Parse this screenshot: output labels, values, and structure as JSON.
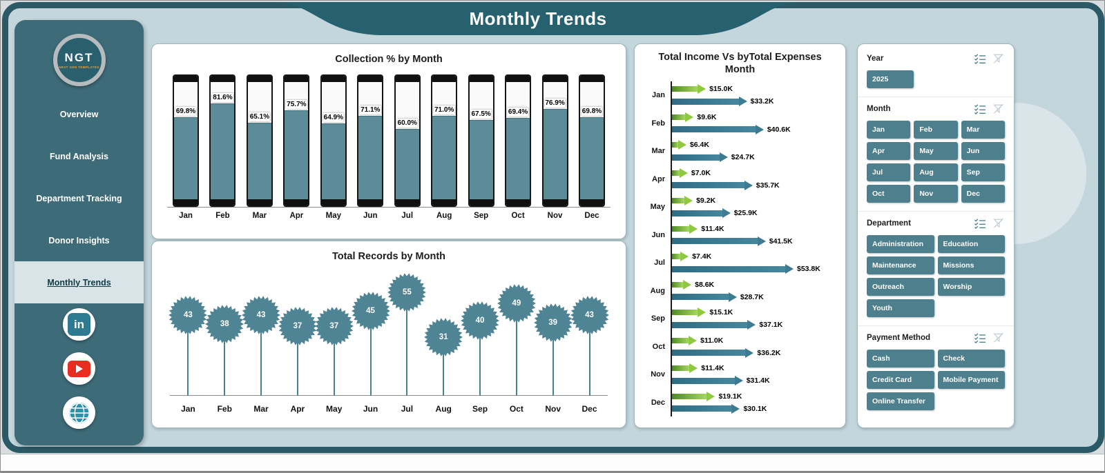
{
  "title": "Monthly Trends",
  "colors": {
    "frame": "#2b5a66",
    "sidebar": "#3e6b78",
    "background": "#c3d6dc",
    "button_teal": "#4d7f8d",
    "bar_fill": "#5d8c99",
    "burst_teal": "#4f8494",
    "income_green": "#7ab33e",
    "expense_teal": "#3c7b91",
    "banner": "#27606e"
  },
  "sidebar": {
    "logo_text": "NGT",
    "logo_subtext": "NEXT GEN TEMPLATES",
    "linkedin_glyph": "in",
    "items": [
      {
        "label": "Overview",
        "active": false
      },
      {
        "label": "Fund Analysis",
        "active": false
      },
      {
        "label": "Department Tracking",
        "active": false
      },
      {
        "label": "Donor Insights",
        "active": false
      },
      {
        "label": "Monthly Trends",
        "active": true
      }
    ],
    "social_icons": [
      "linkedin",
      "youtube",
      "globe"
    ]
  },
  "chart_data": [
    {
      "type": "bar",
      "style": "battery-thermometer",
      "title": "Collection % by Month",
      "categories": [
        "Jan",
        "Feb",
        "Mar",
        "Apr",
        "May",
        "Jun",
        "Jul",
        "Aug",
        "Sep",
        "Oct",
        "Nov",
        "Dec"
      ],
      "values": [
        69.8,
        81.6,
        65.1,
        75.7,
        64.9,
        71.1,
        60.0,
        71.0,
        67.5,
        69.4,
        76.9,
        69.8
      ],
      "value_labels": [
        "69.8%",
        "81.6%",
        "65.1%",
        "75.7%",
        "64.9%",
        "71.1%",
        "60.0%",
        "71.0%",
        "67.5%",
        "69.4%",
        "76.9%",
        "69.8%"
      ],
      "xlabel": "",
      "ylabel": "",
      "ylim": [
        0,
        100
      ],
      "grid": false
    },
    {
      "type": "lollipop",
      "title": "Total Records by Month",
      "categories": [
        "Jan",
        "Feb",
        "Mar",
        "Apr",
        "May",
        "Jun",
        "Jul",
        "Aug",
        "Sep",
        "Oct",
        "Nov",
        "Dec"
      ],
      "values": [
        43,
        38,
        43,
        37,
        37,
        45,
        55,
        31,
        40,
        49,
        39,
        43
      ],
      "xlabel": "",
      "ylabel": "",
      "ylim": [
        0,
        55
      ],
      "grid": false
    },
    {
      "type": "bar",
      "style": "horizontal-arrows",
      "title": "Total Income Vs byTotal Expenses Month",
      "title_line1": "Total Income Vs byTotal Expenses",
      "title_line2": "Month",
      "categories": [
        "Jan",
        "Feb",
        "Mar",
        "Apr",
        "May",
        "Jun",
        "Jul",
        "Aug",
        "Sep",
        "Oct",
        "Nov",
        "Dec"
      ],
      "series": [
        {
          "name": "Total Income",
          "color": "#7ab33e",
          "values": [
            15.0,
            9.6,
            6.4,
            7.0,
            9.2,
            11.4,
            7.4,
            8.6,
            15.1,
            11.0,
            11.4,
            19.1
          ],
          "labels": [
            "$15.0K",
            "$9.6K",
            "$6.4K",
            "$7.0K",
            "$9.2K",
            "$11.4K",
            "$7.4K",
            "$8.6K",
            "$15.1K",
            "$11.0K",
            "$11.4K",
            "$19.1K"
          ]
        },
        {
          "name": "Total Expenses",
          "color": "#3c7b91",
          "values": [
            33.2,
            40.6,
            24.7,
            35.7,
            25.9,
            41.5,
            53.8,
            28.7,
            37.1,
            36.2,
            31.4,
            30.1
          ],
          "labels": [
            "$33.2K",
            "$40.6K",
            "$24.7K",
            "$35.7K",
            "$25.9K",
            "$41.5K",
            "$53.8K",
            "$28.7K",
            "$37.1K",
            "$36.2K",
            "$31.4K",
            "$30.1K"
          ]
        }
      ],
      "xlim": [
        0,
        55
      ],
      "grid": false
    }
  ],
  "slicers": [
    {
      "title": "Year",
      "cols": 1,
      "options": [
        "2025"
      ]
    },
    {
      "title": "Month",
      "cols": 3,
      "options": [
        "Jan",
        "Feb",
        "Mar",
        "Apr",
        "May",
        "Jun",
        "Jul",
        "Aug",
        "Sep",
        "Oct",
        "Nov",
        "Dec"
      ]
    },
    {
      "title": "Department",
      "cols": 2,
      "options": [
        "Administration",
        "Education",
        "Maintenance",
        "Missions",
        "Outreach",
        "Worship",
        "Youth"
      ]
    },
    {
      "title": "Payment Method",
      "cols": 2,
      "options": [
        "Cash",
        "Check",
        "Credit Card",
        "Mobile Payment",
        "Online Transfer"
      ]
    }
  ]
}
